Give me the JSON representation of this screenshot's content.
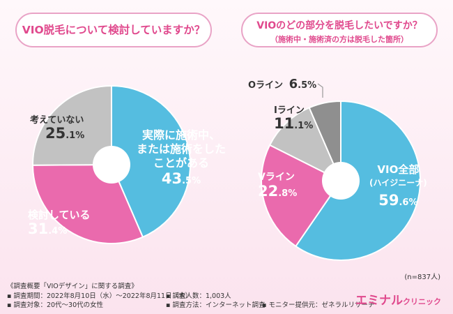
{
  "question1": "VIO脱毛について検討していますか？",
  "question2": {
    "title": "VIOのどの部分を脱毛したいですか？",
    "subtitle": "（施術中・施術済の方は脱毛した箇所）"
  },
  "chart_data": [
    {
      "type": "pie",
      "title": "VIO脱毛について検討していますか？",
      "slices": [
        {
          "label": "実際に施術中、または施術をしたことがある",
          "value": 43.5,
          "color": "#55bde0"
        },
        {
          "label": "検討している",
          "value": 31.4,
          "color": "#ea6aad"
        },
        {
          "label": "考えていない",
          "value": 25.1,
          "color": "#c2c2c2"
        }
      ]
    },
    {
      "type": "pie",
      "title": "VIOのどの部分を脱毛したいですか？",
      "slices": [
        {
          "label": "VIO全部（ハイジニーナ）",
          "value": 59.6,
          "color": "#55bde0"
        },
        {
          "label": "Vライン",
          "value": 22.8,
          "color": "#ea6aad"
        },
        {
          "label": "Iライン",
          "value": 11.1,
          "color": "#c2c2c2"
        },
        {
          "label": "Oライン",
          "value": 6.5,
          "color": "#8f8f8f"
        }
      ]
    }
  ],
  "labels": {
    "c1_s1_line1": "実際に施術中、",
    "c1_s1_line2": "または施術をした",
    "c1_s1_line3": "ことがある",
    "c1_s1_int": "43",
    "c1_s1_dec": ".5%",
    "c1_s2": "検討している",
    "c1_s2_int": "31",
    "c1_s2_dec": ".4%",
    "c1_s3": "考えていない",
    "c1_s3_int": "25",
    "c1_s3_dec": ".1%",
    "c2_s1_line1": "VIO全部",
    "c2_s1_line2": "(ハイジニーナ)",
    "c2_s1_int": "59",
    "c2_s1_dec": ".6%",
    "c2_s2": "Vライン",
    "c2_s2_int": "22",
    "c2_s2_dec": ".8%",
    "c2_s3": "Iライン",
    "c2_s3_int": "11",
    "c2_s3_dec": ".1%",
    "c2_s4": "Oライン",
    "c2_s4_int": "6",
    "c2_s4_dec": ".5%"
  },
  "n_note": "(n=837人)",
  "footer": {
    "survey": "《調査概要「VIOデザイン」に関する調査》",
    "period": "▪ 調査期間：2022年8月10日（水）～2022年8月11日（木）",
    "people": "▪ 調査人数：1,003人",
    "target": "▪ 調査対象：20代～30代の女性",
    "method": "▪ 調査方法：インターネット調査",
    "provider": "▪ モニター提供元：ゼネラルリサーチ"
  },
  "logo": {
    "main": "エミナル",
    "sub": "クリニック"
  }
}
